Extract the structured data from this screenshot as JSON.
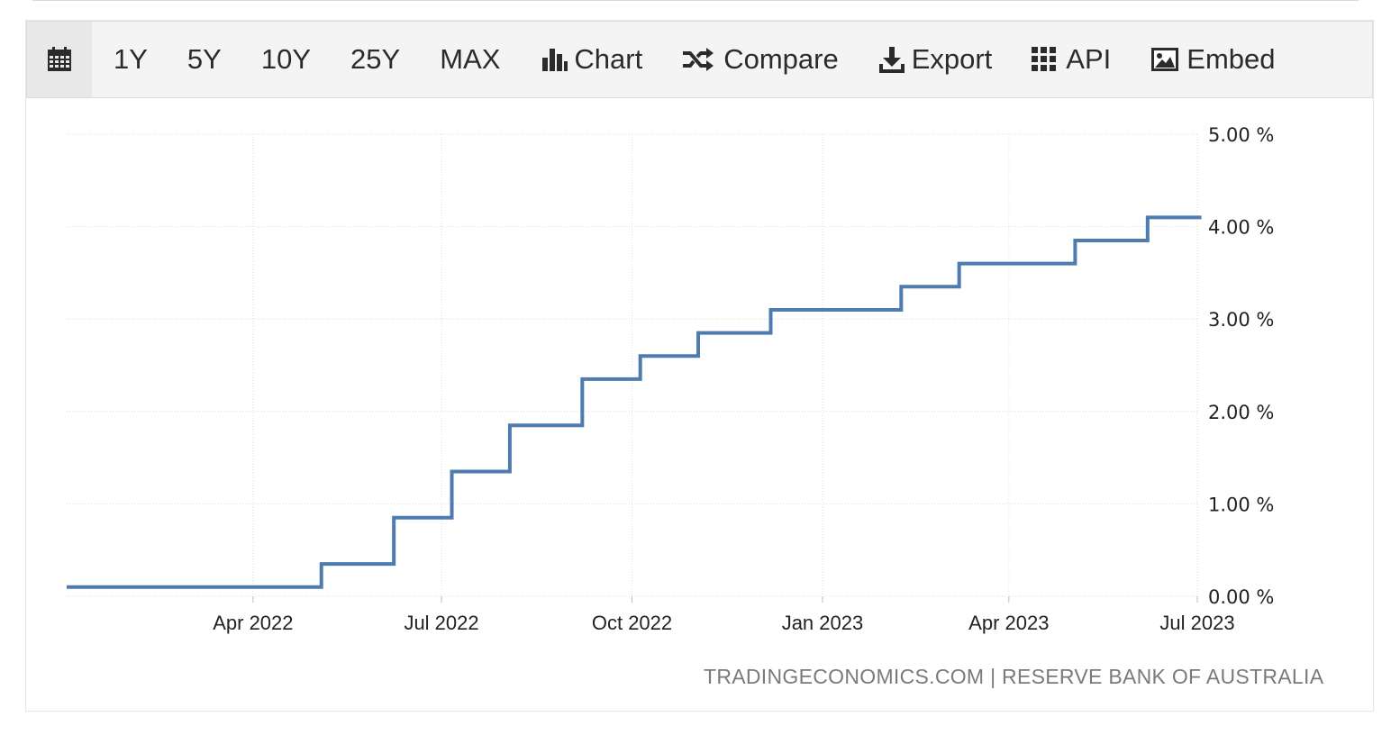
{
  "toolbar": {
    "range_buttons": [
      "1Y",
      "5Y",
      "10Y",
      "25Y",
      "MAX"
    ],
    "chart_label": "Chart",
    "compare_label": "Compare",
    "export_label": "Export",
    "api_label": "API",
    "embed_label": "Embed"
  },
  "source_text": "TRADINGECONOMICS.COM | RESERVE BANK OF AUSTRALIA",
  "colors": {
    "line": "#4f7caf",
    "grid": "#dedede",
    "toolbar_bg": "#f4f4f4"
  },
  "chart_data": {
    "type": "line",
    "step": true,
    "title": "",
    "xlabel": "",
    "ylabel": "",
    "ylim": [
      0,
      5
    ],
    "y_ticks": [
      "0.00 %",
      "1.00 %",
      "2.00 %",
      "3.00 %",
      "4.00 %",
      "5.00 %"
    ],
    "x_ticks": [
      {
        "date": "2022-04-01",
        "label": "Apr 2022"
      },
      {
        "date": "2022-07-01",
        "label": "Jul 2022"
      },
      {
        "date": "2022-10-01",
        "label": "Oct 2022"
      },
      {
        "date": "2023-01-01",
        "label": "Jan 2023"
      },
      {
        "date": "2023-04-01",
        "label": "Apr 2023"
      },
      {
        "date": "2023-07-01",
        "label": "Jul 2023"
      }
    ],
    "xlim": [
      "2022-01-01",
      "2023-07-01"
    ],
    "grid": true,
    "y_axis_side": "right",
    "series": [
      {
        "points": [
          {
            "x": "2022-01-01",
            "y": 0.1
          },
          {
            "x": "2022-05-04",
            "y": 0.35
          },
          {
            "x": "2022-06-08",
            "y": 0.85
          },
          {
            "x": "2022-07-06",
            "y": 1.35
          },
          {
            "x": "2022-08-03",
            "y": 1.85
          },
          {
            "x": "2022-09-07",
            "y": 2.35
          },
          {
            "x": "2022-10-05",
            "y": 2.6
          },
          {
            "x": "2022-11-02",
            "y": 2.85
          },
          {
            "x": "2022-12-07",
            "y": 3.1
          },
          {
            "x": "2023-02-08",
            "y": 3.35
          },
          {
            "x": "2023-03-08",
            "y": 3.6
          },
          {
            "x": "2023-05-03",
            "y": 3.85
          },
          {
            "x": "2023-06-07",
            "y": 4.1
          },
          {
            "x": "2023-07-03",
            "y": 4.1
          }
        ]
      }
    ]
  }
}
